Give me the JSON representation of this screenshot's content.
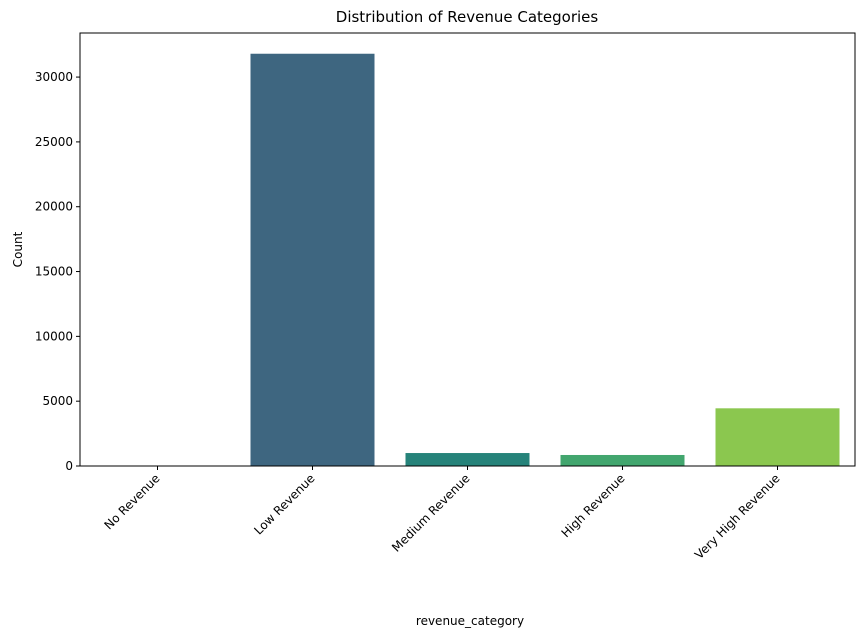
{
  "chart_data": {
    "type": "bar",
    "title": "Distribution of Revenue Categories",
    "xlabel": "revenue_category",
    "ylabel": "Count",
    "categories": [
      "No Revenue",
      "Low Revenue",
      "Medium Revenue",
      "High Revenue",
      "Very High Revenue"
    ],
    "values": [
      0,
      31800,
      1000,
      850,
      4450
    ],
    "colors": [
      "#440154",
      "#3e6680",
      "#26837a",
      "#42a66e",
      "#8bc74f"
    ],
    "ylim": [
      0,
      33400
    ],
    "yticks": [
      0,
      5000,
      10000,
      15000,
      20000,
      25000,
      30000
    ],
    "xtick_rotation": 45,
    "grid": false,
    "legend": "none"
  }
}
